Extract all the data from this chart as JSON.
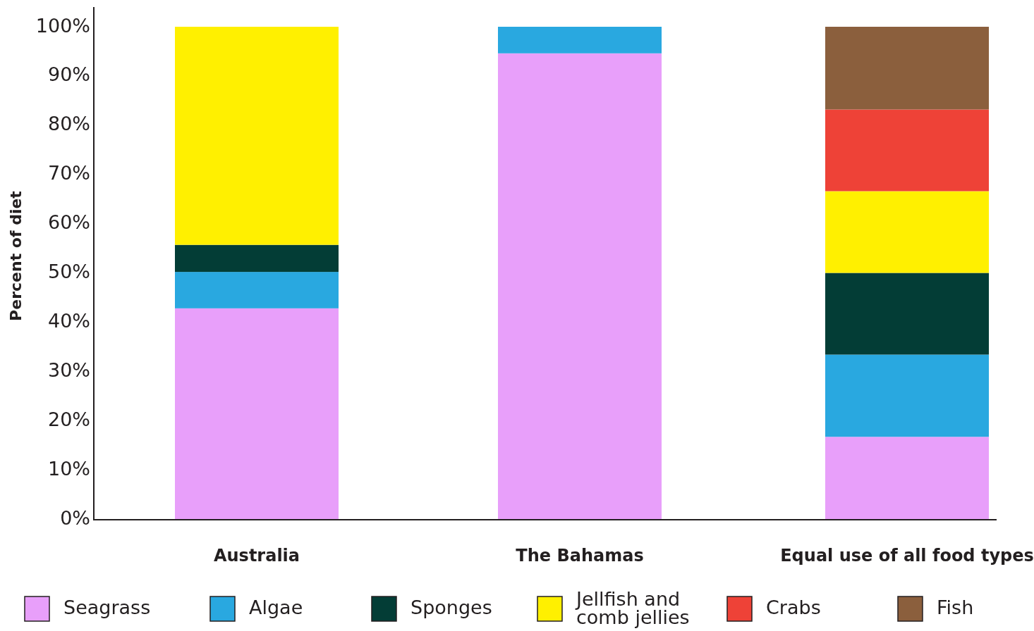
{
  "chart_data": {
    "type": "bar",
    "ylabel": "Percent of diet",
    "categories": [
      "Australia",
      "The Bahamas",
      "Equal use of all food types"
    ],
    "stacked": true,
    "legend": "bottom",
    "grid": false,
    "ylim": [
      0,
      104
    ],
    "yticks": [
      {
        "value": 0,
        "label": "0%"
      },
      {
        "value": 10,
        "label": "10%"
      },
      {
        "value": 20,
        "label": "20%"
      },
      {
        "value": 30,
        "label": "30%"
      },
      {
        "value": 40,
        "label": "40%"
      },
      {
        "value": 50,
        "label": "50%"
      },
      {
        "value": 60,
        "label": "60%"
      },
      {
        "value": 70,
        "label": "70%"
      },
      {
        "value": 80,
        "label": "80%"
      },
      {
        "value": 90,
        "label": "90%"
      },
      {
        "value": 100,
        "label": "100%"
      }
    ],
    "series": [
      {
        "name": "Seagrass",
        "color": "#e89ffa",
        "values": [
          42.8,
          94.6,
          16.7
        ]
      },
      {
        "name": "Algae",
        "color": "#29a8e0",
        "values": [
          7.4,
          5.4,
          16.7
        ]
      },
      {
        "name": "Sponges",
        "color": "#033d36",
        "values": [
          5.5,
          0,
          16.6
        ]
      },
      {
        "name": "Jellfish and comb jellies",
        "color": "#fff000",
        "values": [
          44.3,
          0,
          16.6
        ]
      },
      {
        "name": "Crabs",
        "color": "#ee4237",
        "values": [
          0,
          0,
          16.6
        ]
      },
      {
        "name": "Fish",
        "color": "#8b5f3d",
        "values": [
          0,
          0,
          16.8
        ]
      }
    ]
  }
}
